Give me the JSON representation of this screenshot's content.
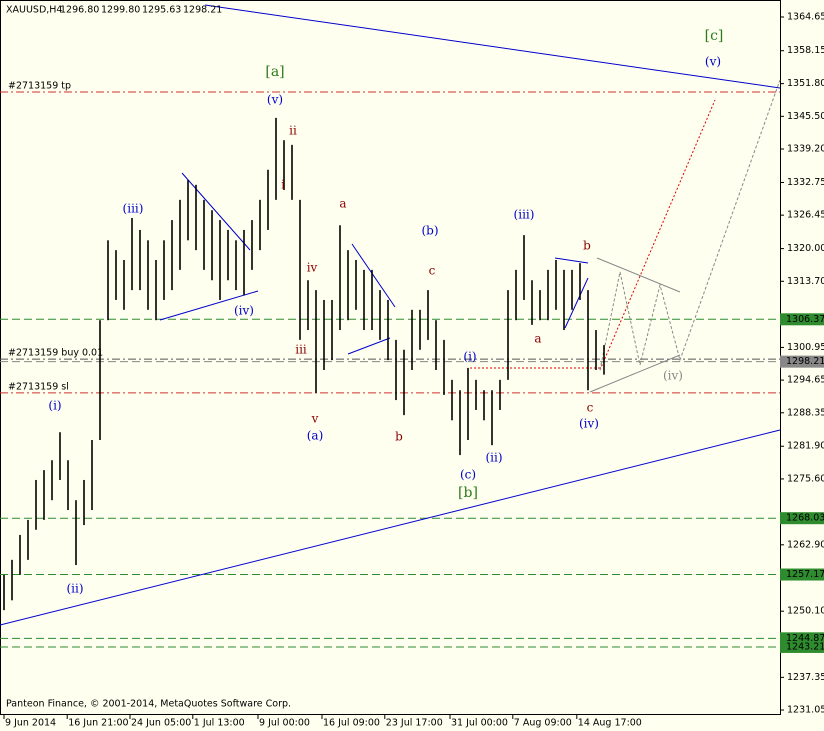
{
  "header": {
    "symbol": "XAUUSD,H4",
    "open": "1296.80",
    "high": "1299.80",
    "low": "1295.63",
    "close": "1298.21",
    "footer": "Panteon Finance, © 2001-2014, MetaQuotes Software Corp."
  },
  "chart_data": {
    "type": "ohlc-range",
    "high": [
      1257.1,
      1260.0,
      1264.8,
      1267.7,
      1275.4,
      1277.3,
      1279.2,
      1284.6,
      1279.2,
      1271.5,
      1275.4,
      1283.1,
      1306.2,
      1321.6,
      1319.7,
      1317.8,
      1325.9,
      1323.6,
      1321.6,
      1317.8,
      1321.6,
      1325.5,
      1329.4,
      1333.2,
      1332.3,
      1329.4,
      1327.4,
      1325.5,
      1323.6,
      1321.6,
      1323.6,
      1325.5,
      1329.4,
      1335.2,
      1345.2,
      1340.9,
      1340.0,
      1329.4,
      1313.9,
      1312.0,
      1310.1,
      1310.1,
      1324.5,
      1319.7,
      1317.8,
      1315.9,
      1315.9,
      1312.0,
      1310.1,
      1302.4,
      1300.5,
      1308.2,
      1308.2,
      1312.0,
      1306.2,
      1302.4,
      1294.7,
      1292.7,
      1297.0,
      1294.7,
      1292.7,
      1292.7,
      1294.7,
      1312.0,
      1315.9,
      1322.6,
      1313.9,
      1312.0,
      1315.9,
      1317.8,
      1315.9,
      1315.9,
      1317.2,
      1312.0,
      1304.3,
      1301.4
    ],
    "low": [
      1250.3,
      1252.2,
      1257.1,
      1260.0,
      1265.8,
      1267.7,
      1271.5,
      1275.4,
      1269.6,
      1259.0,
      1266.7,
      1269.6,
      1283.1,
      1306.2,
      1310.1,
      1308.2,
      1312.0,
      1312.0,
      1308.2,
      1306.2,
      1310.1,
      1312.0,
      1315.9,
      1321.6,
      1319.7,
      1315.9,
      1313.9,
      1310.1,
      1313.9,
      1312.0,
      1311.0,
      1315.9,
      1319.7,
      1323.6,
      1329.4,
      1331.3,
      1329.4,
      1302.4,
      1304.3,
      1292.2,
      1296.6,
      1298.5,
      1304.3,
      1306.2,
      1308.2,
      1304.3,
      1304.3,
      1302.4,
      1298.5,
      1290.8,
      1287.9,
      1296.6,
      1300.5,
      1302.4,
      1296.6,
      1291.8,
      1286.9,
      1280.2,
      1283.1,
      1288.9,
      1286.9,
      1282.1,
      1288.9,
      1294.7,
      1306.2,
      1310.1,
      1305.3,
      1306.2,
      1306.2,
      1308.2,
      1304.3,
      1308.2,
      1310.1,
      1292.7,
      1296.6,
      1295.7
    ],
    "color": "#000000",
    "xlim": [
      -0.5,
      97
    ],
    "xticks": [
      {
        "value": 0,
        "label": "9 Jun 2014"
      },
      {
        "value": 7.9,
        "label": "16 Jun 21:00"
      },
      {
        "value": 15.75,
        "label": "24 Jun 05:00"
      },
      {
        "value": 23.6,
        "label": "1 Jul 13:00"
      },
      {
        "value": 31.75,
        "label": "9 Jul 00:00"
      },
      {
        "value": 39.75,
        "label": "16 Jul 09:00"
      },
      {
        "value": 47.6,
        "label": "23 Jul 17:00"
      },
      {
        "value": 55.75,
        "label": "31 Jul 00:00"
      },
      {
        "value": 63.6,
        "label": "7 Aug 09:00"
      },
      {
        "value": 71.6,
        "label": "14 Aug 17:00"
      }
    ],
    "ylim": [
      1230.09,
      1367.54
    ],
    "yticks": [
      1364.65,
      1358.15,
      {
        "value": 1351.8,
        "label": "1351.80"
      },
      {
        "value": 1345.5,
        "label": "1345.50"
      },
      {
        "value": 1339.2,
        "label": "1339.20"
      },
      1332.75,
      1326.45,
      {
        "value": 1320,
        "label": "1320.00"
      },
      {
        "value": 1313.7,
        "label": "1313.70"
      },
      1300.95,
      1294.65,
      1288.35,
      {
        "value": 1281.9,
        "label": "1281.90"
      },
      {
        "value": 1275.6,
        "label": "1275.60"
      },
      {
        "value": 1262.9,
        "label": "1262.90"
      },
      {
        "value": 1250.1,
        "label": "1250.10"
      },
      1237.35,
      1231.05
    ],
    "levels": [
      {
        "value": 1306.37,
        "color": "#2e8b2e"
      },
      {
        "value": 1298.21,
        "color": "#888888"
      },
      {
        "value": 1268.03,
        "color": "#2e8b2e"
      },
      {
        "value": 1257.17,
        "color": "#2e8b2e"
      },
      {
        "value": 1244.87,
        "color": "#2e8b2e"
      },
      {
        "value": 1243.21,
        "color": "#2e8b2e"
      }
    ],
    "orders": [
      {
        "label": "#2713159 tp",
        "value": 1350.2,
        "color": "#d03030"
      },
      {
        "label": "#2713159 buy 0.01",
        "value": 1298.7,
        "color": "#555555"
      },
      {
        "label": "#2713159 sl",
        "value": 1292.2,
        "color": "#d03030"
      }
    ],
    "annotations": [
      "[c]",
      "(v)",
      "[a]",
      "(v)",
      "ii",
      "i",
      "(iii)",
      "(iv)",
      "a",
      "iv",
      "iii",
      "v",
      "(a)",
      "(b)",
      "c",
      "b",
      "(i)",
      "(ii)",
      "(c)",
      "[b]",
      "(iii)",
      "a",
      "b",
      "c",
      "(iv)",
      "(iv)",
      "(i)",
      "(ii)"
    ]
  }
}
